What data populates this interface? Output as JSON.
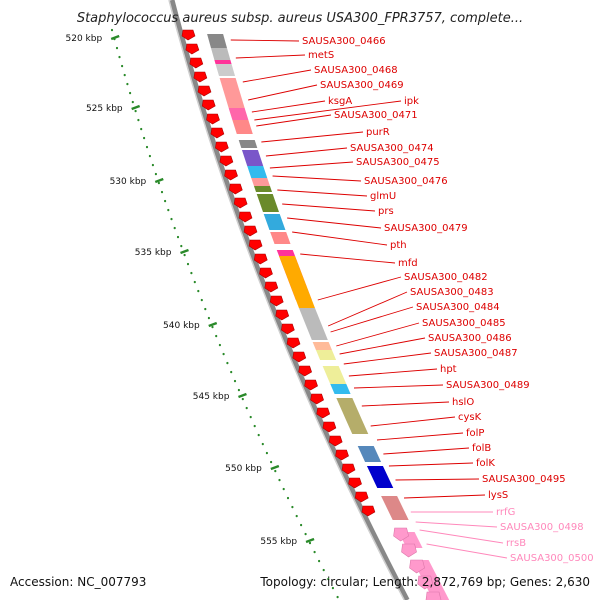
{
  "header": {
    "title": "Staphylococcus aureus subsp. aureus USA300_FPR3757, complete..."
  },
  "footer": {
    "accession": "Accession: NC_007793",
    "summary": "Topology: circular; Length: 2,872,769 bp; Genes: 2,630"
  },
  "scale": {
    "ticks": [
      "520 kbp",
      "525 kbp",
      "530 kbp",
      "535 kbp",
      "540 kbp",
      "545 kbp",
      "550 kbp",
      "555 kbp"
    ]
  },
  "colors": {
    "cds": "#ff0000",
    "rna": "#ff99cc",
    "backbone": "#888888",
    "label_cds": "#dd0000",
    "label_rna": "#ff88bb",
    "tick": "#2a8a2a"
  },
  "genes": [
    {
      "label": "SAUSA300_0466",
      "type": "cds"
    },
    {
      "label": "metS",
      "type": "cds"
    },
    {
      "label": "SAUSA300_0468",
      "type": "cds"
    },
    {
      "label": "SAUSA300_0469",
      "type": "cds"
    },
    {
      "label": "ksgA",
      "type": "cds"
    },
    {
      "label": "ipk",
      "type": "cds"
    },
    {
      "label": "SAUSA300_0471",
      "type": "cds"
    },
    {
      "label": "purR",
      "type": "cds"
    },
    {
      "label": "SAUSA300_0474",
      "type": "cds"
    },
    {
      "label": "SAUSA300_0475",
      "type": "cds"
    },
    {
      "label": "SAUSA300_0476",
      "type": "cds"
    },
    {
      "label": "glmU",
      "type": "cds"
    },
    {
      "label": "prs",
      "type": "cds"
    },
    {
      "label": "SAUSA300_0479",
      "type": "cds"
    },
    {
      "label": "pth",
      "type": "cds"
    },
    {
      "label": "mfd",
      "type": "cds"
    },
    {
      "label": "SAUSA300_0482",
      "type": "cds"
    },
    {
      "label": "SAUSA300_0483",
      "type": "cds"
    },
    {
      "label": "SAUSA300_0484",
      "type": "cds"
    },
    {
      "label": "SAUSA300_0485",
      "type": "cds"
    },
    {
      "label": "SAUSA300_0486",
      "type": "cds"
    },
    {
      "label": "SAUSA300_0487",
      "type": "cds"
    },
    {
      "label": "hpt",
      "type": "cds"
    },
    {
      "label": "SAUSA300_0489",
      "type": "cds"
    },
    {
      "label": "hslO",
      "type": "cds"
    },
    {
      "label": "cysK",
      "type": "cds"
    },
    {
      "label": "folP",
      "type": "cds"
    },
    {
      "label": "folB",
      "type": "cds"
    },
    {
      "label": "folK",
      "type": "cds"
    },
    {
      "label": "SAUSA300_0495",
      "type": "cds"
    },
    {
      "label": "lysS",
      "type": "cds"
    },
    {
      "label": "rrfG",
      "type": "rna"
    },
    {
      "label": "SAUSA300_0498",
      "type": "rna"
    },
    {
      "label": "rrsB",
      "type": "rna"
    },
    {
      "label": "SAUSA300_0500",
      "type": "rna"
    }
  ]
}
